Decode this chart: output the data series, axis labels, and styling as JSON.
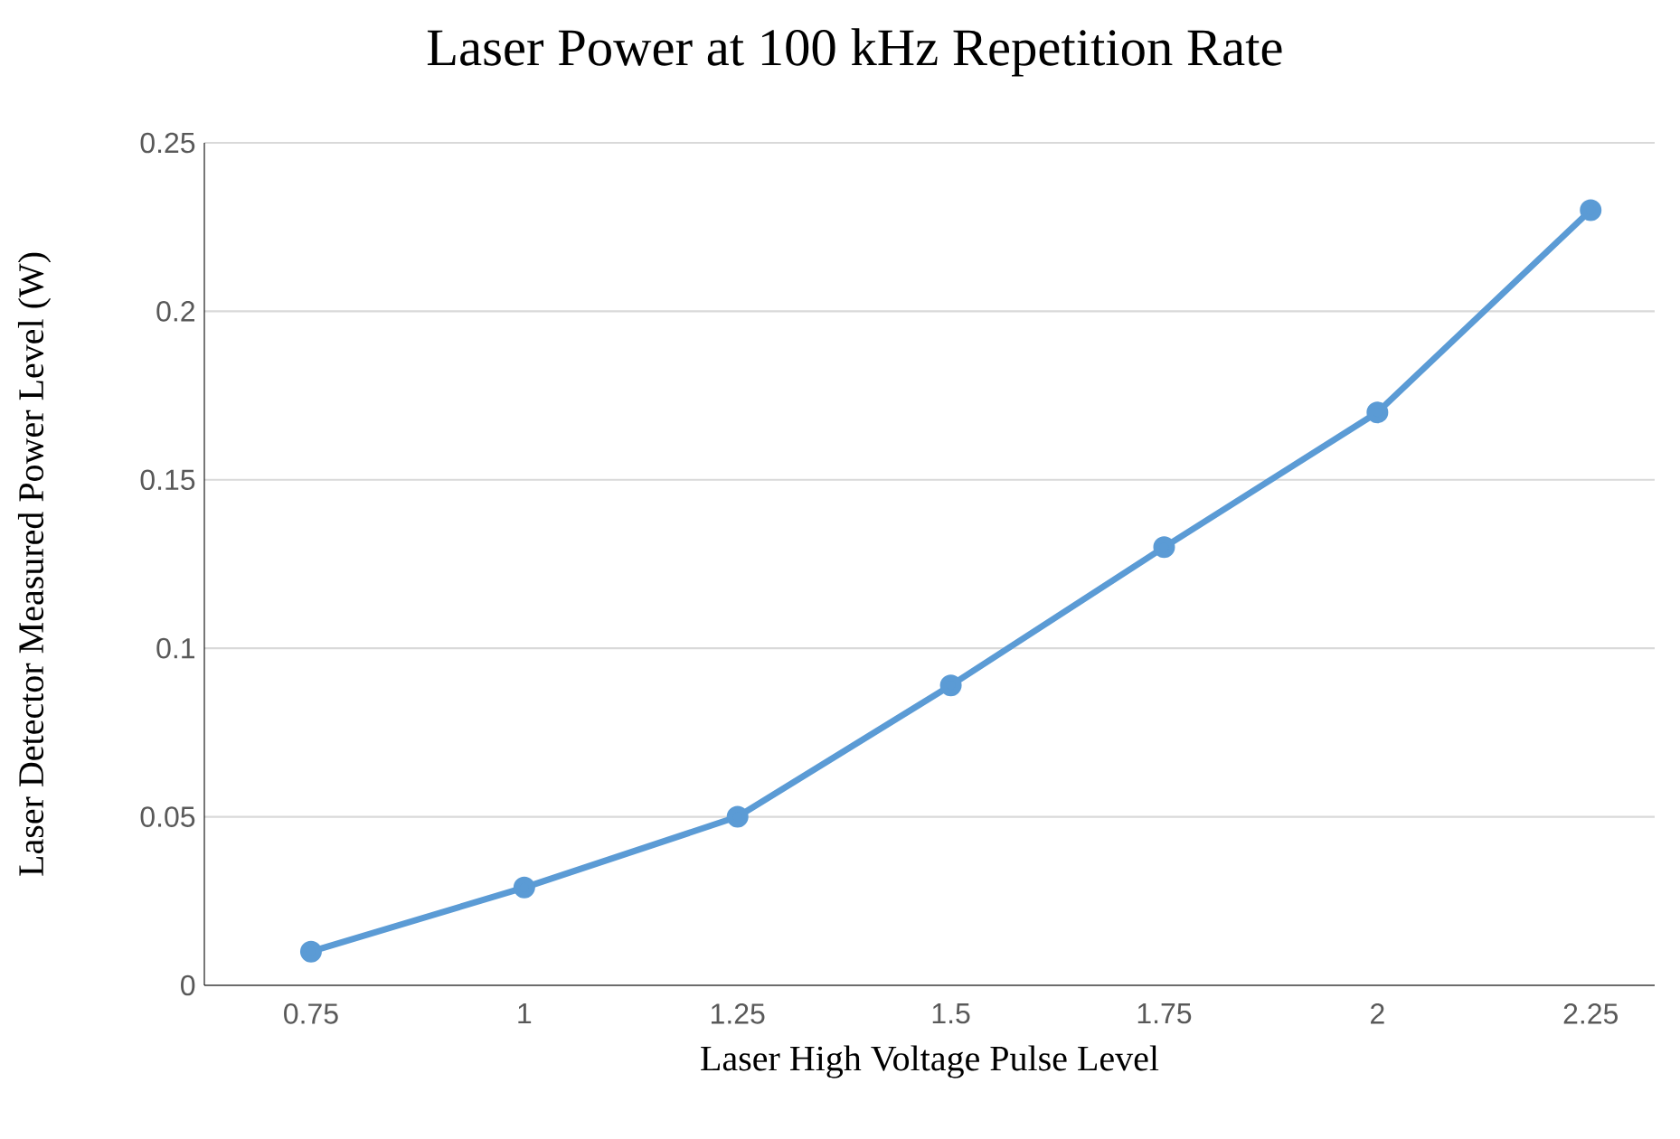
{
  "chart_data": {
    "type": "line",
    "title": "Laser Power at 100 kHz Repetition Rate",
    "xlabel": "Laser High Voltage Pulse Level",
    "ylabel": "Laser Detector Measured Power Level (W)",
    "categories": [
      "0.75",
      "1",
      "1.25",
      "1.5",
      "1.75",
      "2",
      "2.25"
    ],
    "series": [
      {
        "color": "#5b9bd5",
        "values": [
          0.01,
          0.029,
          0.05,
          0.089,
          0.13,
          0.17,
          0.23
        ]
      }
    ],
    "ylim": [
      0,
      0.25
    ],
    "yticks": [
      0,
      0.05,
      0.1,
      0.15,
      0.2,
      0.25
    ],
    "grid": "y",
    "marker": "circle",
    "line_style": "solid"
  }
}
